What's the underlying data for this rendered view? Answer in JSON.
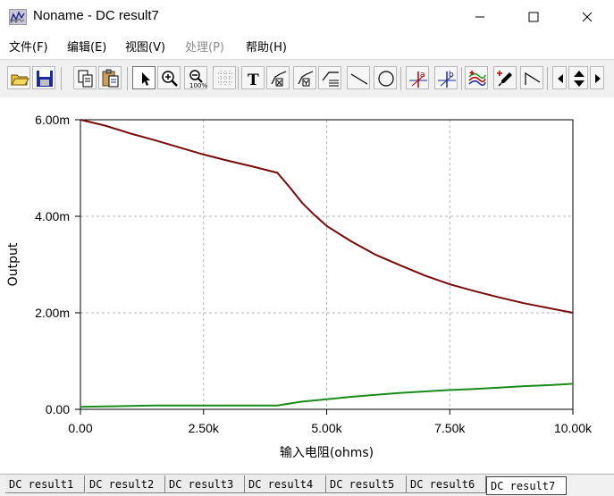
{
  "window": {
    "title": "Noname - DC result7",
    "controls": [
      "minimize",
      "maximize",
      "close"
    ]
  },
  "menu": [
    {
      "label": "文件(F)",
      "enabled": true
    },
    {
      "label": "编辑(E)",
      "enabled": true
    },
    {
      "label": "视图(V)",
      "enabled": true
    },
    {
      "label": "处理(P)",
      "enabled": false
    },
    {
      "label": "帮助(H)",
      "enabled": true
    }
  ],
  "toolbar": {
    "buttons": [
      "open-icon",
      "save-icon",
      "copy-icon",
      "paste-icon",
      "pointer-icon",
      "zoom-in-icon",
      "zoom-100-icon",
      "grid-icon",
      "text-icon",
      "annotate-x-icon",
      "annotate-y-icon",
      "annotate-xy-icon",
      "line-icon",
      "circle-icon",
      "cursor-a-icon",
      "cursor-b-icon",
      "curves-icon",
      "color-picker-icon",
      "segment-icon",
      "scroll-left-icon",
      "scroll-updown-icon",
      "scroll-right-icon"
    ],
    "pressed": "pointer-icon",
    "text_button_glyph": "T",
    "zoom_100_label": "100%",
    "cursor_a_label": "a",
    "cursor_b_label": "b"
  },
  "chart_data": {
    "type": "line",
    "xlabel": "输入电阻(ohms)",
    "ylabel": "Output",
    "xlim": [
      0,
      10000
    ],
    "ylim": [
      0,
      0.006
    ],
    "x_ticks": [
      0,
      2500,
      5000,
      7500,
      10000
    ],
    "x_tick_labels": [
      "0.00",
      "2.50k",
      "5.00k",
      "7.50k",
      "10.00k"
    ],
    "y_ticks": [
      0,
      0.002,
      0.004,
      0.006
    ],
    "y_tick_labels": [
      "0.00",
      "2.00m",
      "4.00m",
      "6.00m"
    ],
    "grid": true,
    "series": [
      {
        "color": "#7a0a0a",
        "x": [
          0,
          500,
          1000,
          1500,
          2000,
          2500,
          3000,
          3500,
          4000,
          4250,
          4500,
          4750,
          5000,
          5500,
          6000,
          6500,
          7000,
          7500,
          8000,
          8500,
          9000,
          9500,
          10000
        ],
        "y": [
          0.006,
          0.00588,
          0.00572,
          0.00558,
          0.00543,
          0.00528,
          0.00515,
          0.00503,
          0.0049,
          0.0046,
          0.00428,
          0.00403,
          0.0038,
          0.00348,
          0.0032,
          0.00298,
          0.00277,
          0.00259,
          0.00245,
          0.00232,
          0.0022,
          0.0021,
          0.002
        ]
      },
      {
        "color": "#1a8a1a",
        "x": [
          0,
          500,
          1000,
          1500,
          2000,
          2500,
          3000,
          3500,
          4000,
          4250,
          4500,
          5000,
          5500,
          6000,
          6500,
          7000,
          7500,
          8000,
          8500,
          9000,
          9500,
          10000
        ],
        "y": [
          5e-05,
          6e-05,
          7e-05,
          8e-05,
          8e-05,
          8e-05,
          8e-05,
          8e-05,
          8e-05,
          0.00012,
          0.00016,
          0.00021,
          0.00026,
          0.0003,
          0.00034,
          0.00037,
          0.0004,
          0.00042,
          0.00045,
          0.00048,
          0.0005,
          0.00053
        ]
      }
    ]
  },
  "tabs": [
    {
      "label": "DC result1",
      "active": false
    },
    {
      "label": "DC result2",
      "active": false
    },
    {
      "label": "DC result3",
      "active": false
    },
    {
      "label": "DC result4",
      "active": false
    },
    {
      "label": "DC result5",
      "active": false
    },
    {
      "label": "DC result6",
      "active": false
    },
    {
      "label": "DC result7",
      "active": true
    }
  ]
}
